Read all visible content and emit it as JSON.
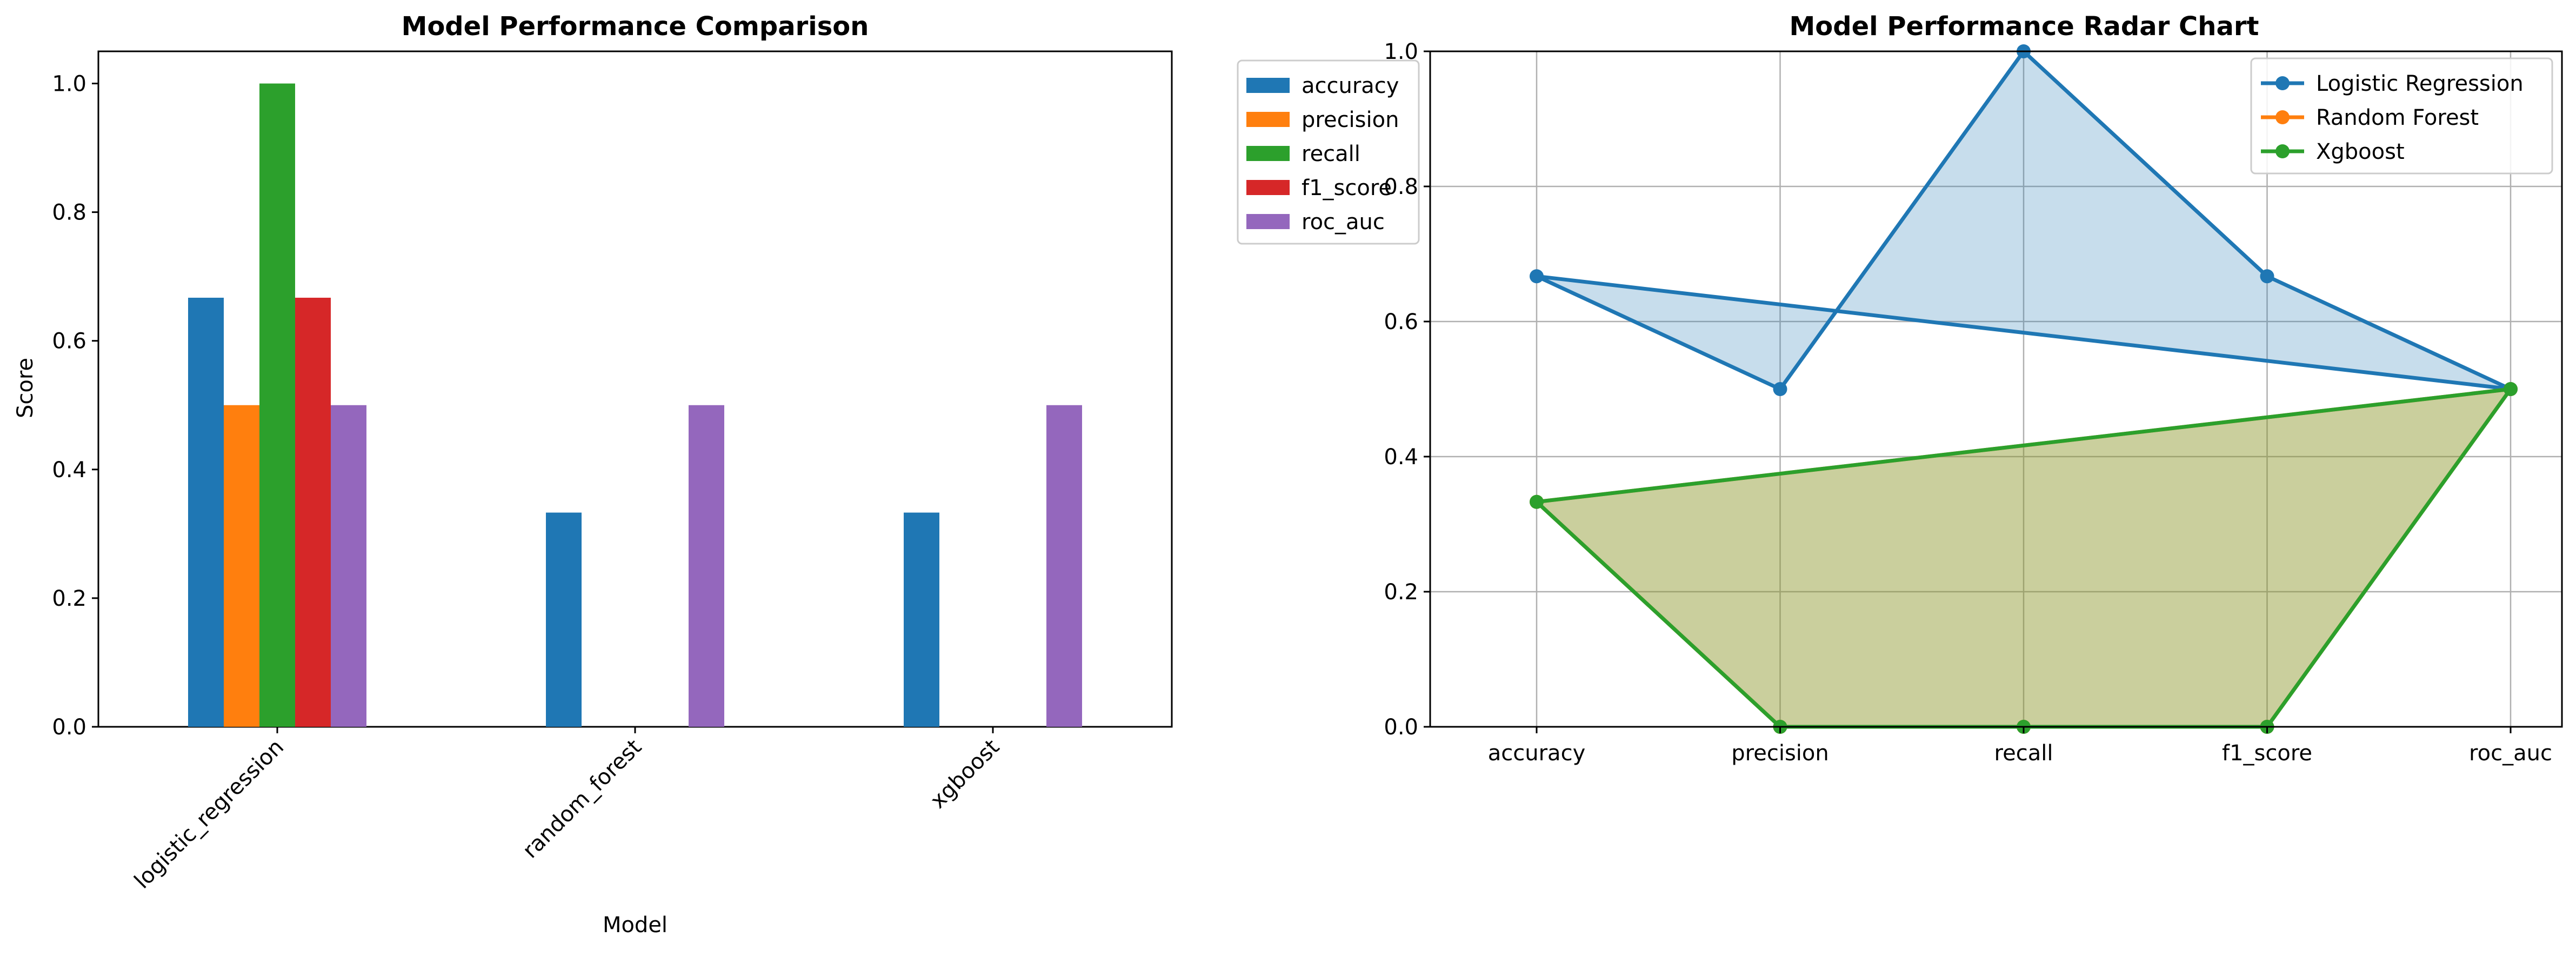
{
  "chart_data": [
    {
      "type": "bar",
      "title": "Model Performance Comparison",
      "xlabel": "Model",
      "ylabel": "Score",
      "categories": [
        "logistic_regression",
        "random_forest",
        "xgboost"
      ],
      "series": [
        {
          "name": "accuracy",
          "color": "#1f77b4",
          "values": [
            0.667,
            0.333,
            0.333
          ]
        },
        {
          "name": "precision",
          "color": "#ff7f0e",
          "values": [
            0.5,
            0.0,
            0.0
          ]
        },
        {
          "name": "recall",
          "color": "#2ca02c",
          "values": [
            1.0,
            0.0,
            0.0
          ]
        },
        {
          "name": "f1_score",
          "color": "#d62728",
          "values": [
            0.667,
            0.0,
            0.0
          ]
        },
        {
          "name": "roc_auc",
          "color": "#9467bd",
          "values": [
            0.5,
            0.5,
            0.5
          ]
        }
      ],
      "ylim": [
        0,
        1.05
      ],
      "yticks": [
        "0.0",
        "0.2",
        "0.4",
        "0.6",
        "0.8",
        "1.0"
      ],
      "grid": false,
      "legend_position": "outside-top-right",
      "xtick_rotation": 45
    },
    {
      "type": "line",
      "title": "Model Performance Radar Chart",
      "categories": [
        "accuracy",
        "precision",
        "recall",
        "f1_score",
        "roc_auc"
      ],
      "series": [
        {
          "name": "Logistic Regression",
          "color": "#1f77b4",
          "values": [
            0.667,
            0.5,
            1.0,
            0.667,
            0.5
          ]
        },
        {
          "name": "Random Forest",
          "color": "#ff7f0e",
          "values": [
            0.333,
            0.0,
            0.0,
            0.0,
            0.5
          ]
        },
        {
          "name": "Xgboost",
          "color": "#2ca02c",
          "values": [
            0.333,
            0.0,
            0.0,
            0.0,
            0.5
          ]
        }
      ],
      "closed_polygon": true,
      "filled": true,
      "ylim": [
        0,
        1.0
      ],
      "yticks": [
        "0.0",
        "0.2",
        "0.4",
        "0.6",
        "0.8",
        "1.0"
      ],
      "grid": true,
      "legend_position": "top-right"
    }
  ]
}
